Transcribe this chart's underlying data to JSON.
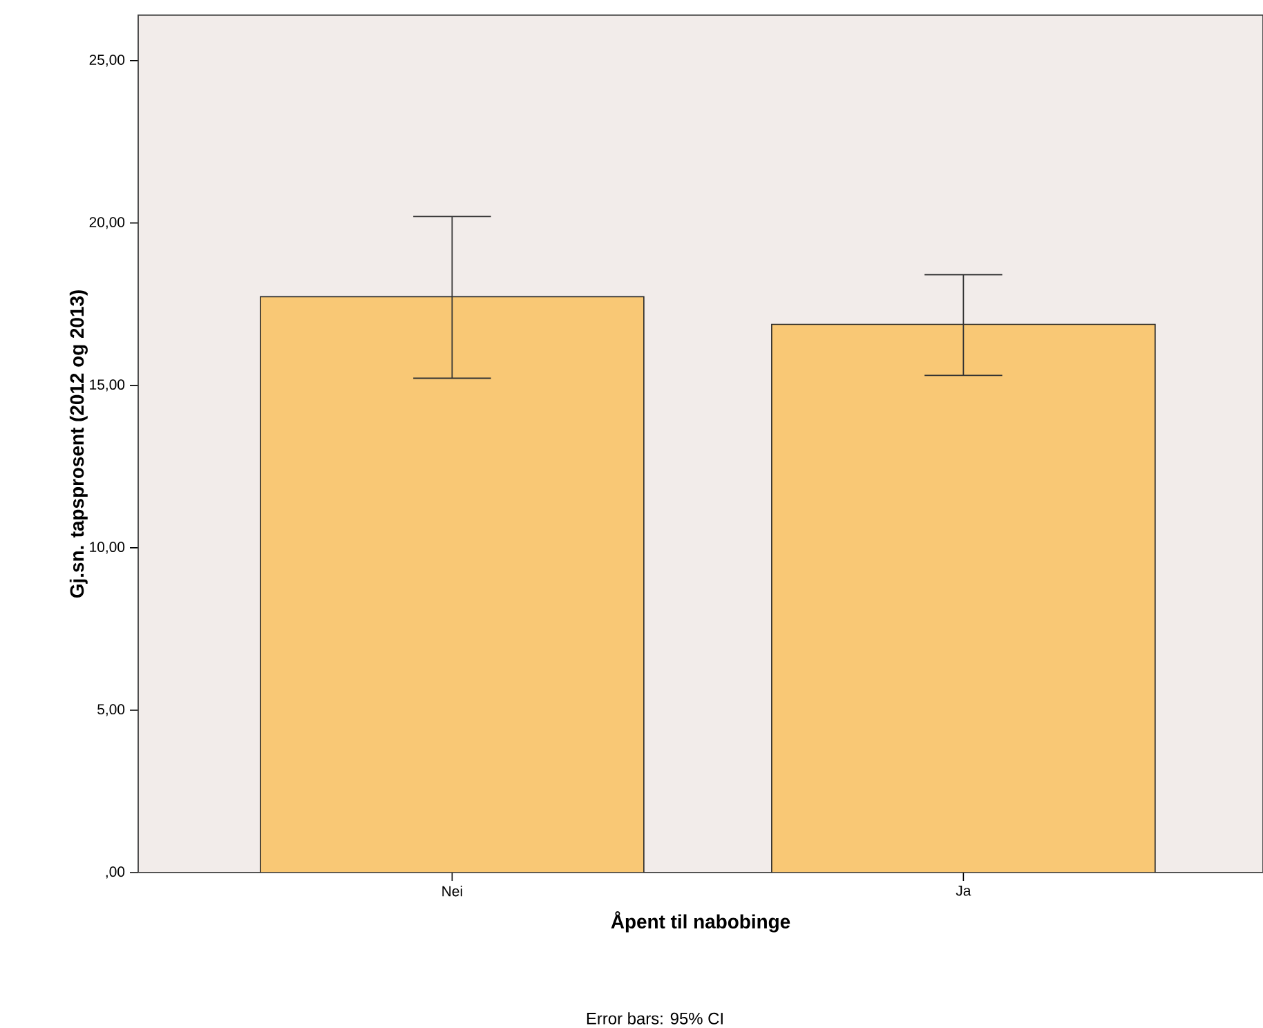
{
  "chart_data": {
    "type": "bar",
    "xlabel": "Åpent til nabobinge",
    "ylabel": "Gj.sn. tapsprosent (2012 og 2013)",
    "annotations": [
      "Error bars: 95% CI"
    ],
    "categories": [
      "Nei",
      "Ja"
    ],
    "values": [
      17.73,
      16.88
    ],
    "color": "#f9c875",
    "errors": [
      [
        15.22,
        20.2
      ],
      [
        15.31,
        18.41
      ]
    ],
    "ylim": [
      0,
      26.4
    ],
    "yticks": [
      {
        "value": 0,
        "label": ",00"
      },
      {
        "value": 5,
        "label": "5,00"
      },
      {
        "value": 10,
        "label": "10,00"
      },
      {
        "value": 15,
        "label": "15,00"
      },
      {
        "value": 20,
        "label": "20,00"
      },
      {
        "value": 25,
        "label": "25,00"
      }
    ],
    "grid": false
  }
}
